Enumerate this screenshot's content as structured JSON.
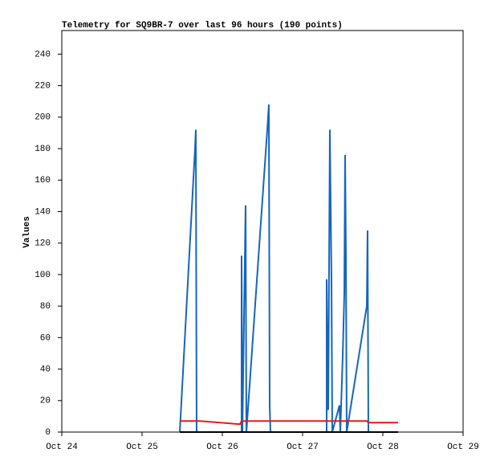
{
  "chart_data": {
    "type": "line",
    "title": "Telemetry for SQ9BR-7 over last 96 hours (190 points)",
    "y_label": "Values",
    "xlim": [
      0,
      5
    ],
    "xticks": [
      {
        "value": 0,
        "label": "Oct 24"
      },
      {
        "value": 1,
        "label": "Oct 25"
      },
      {
        "value": 2,
        "label": "Oct 26"
      },
      {
        "value": 3,
        "label": "Oct 27"
      },
      {
        "value": 4,
        "label": "Oct 28"
      },
      {
        "value": 5,
        "label": "Oct 29"
      }
    ],
    "ylim": [
      0,
      255
    ],
    "yticks": [
      0,
      20,
      40,
      60,
      80,
      100,
      120,
      140,
      160,
      180,
      200,
      220,
      240
    ],
    "grid": false,
    "series": [
      {
        "color": "#1565c0",
        "x": [
          1.47,
          1.66,
          1.67,
          1.68,
          2.24,
          2.24,
          2.25,
          2.29,
          2.3,
          2.56,
          2.58,
          2.59,
          2.6,
          3.3,
          3.3,
          3.31,
          3.32,
          3.34,
          3.36,
          3.37,
          3.46,
          3.47,
          3.5,
          3.52,
          3.53,
          3.54,
          3.55,
          3.8,
          3.81,
          3.82
        ],
        "values": [
          0,
          180,
          192,
          0,
          0,
          112,
          0,
          144,
          0,
          192,
          208,
          17,
          0,
          0,
          97,
          48,
          14,
          192,
          97,
          0,
          17,
          0,
          48,
          88,
          176,
          112,
          0,
          80,
          128,
          0
        ]
      },
      {
        "color": "#e31a1c",
        "x": [
          1.47,
          1.72,
          2.22,
          2.24,
          3.8,
          3.82,
          4.19
        ],
        "values": [
          7,
          7,
          5,
          7,
          7,
          6,
          6
        ]
      },
      {
        "color": "#000000",
        "x": [
          1.47,
          4.19
        ],
        "values": [
          0,
          0
        ]
      }
    ]
  }
}
